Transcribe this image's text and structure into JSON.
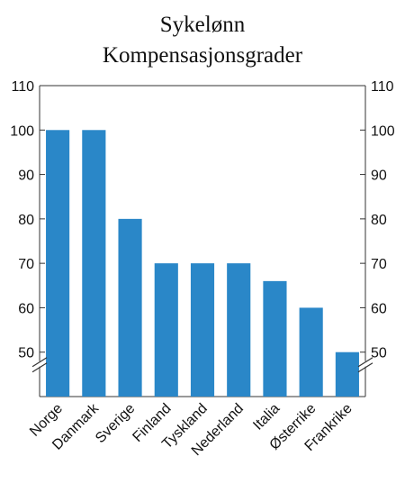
{
  "chart_data": {
    "type": "bar",
    "title": "Sykelønn",
    "subtitle": "Kompensasjonsgrader",
    "categories": [
      "Norge",
      "Danmark",
      "Sverige",
      "Finland",
      "Tyskland",
      "Nederland",
      "Italia",
      "Østerrike",
      "Frankrike"
    ],
    "values": [
      100,
      100,
      80,
      70,
      70,
      70,
      66,
      60,
      50
    ],
    "ylim": [
      40,
      110
    ],
    "yticks": [
      50,
      60,
      70,
      80,
      90,
      100,
      110
    ],
    "axis_break": true,
    "grid": false,
    "bar_color": "#2a87c8"
  }
}
